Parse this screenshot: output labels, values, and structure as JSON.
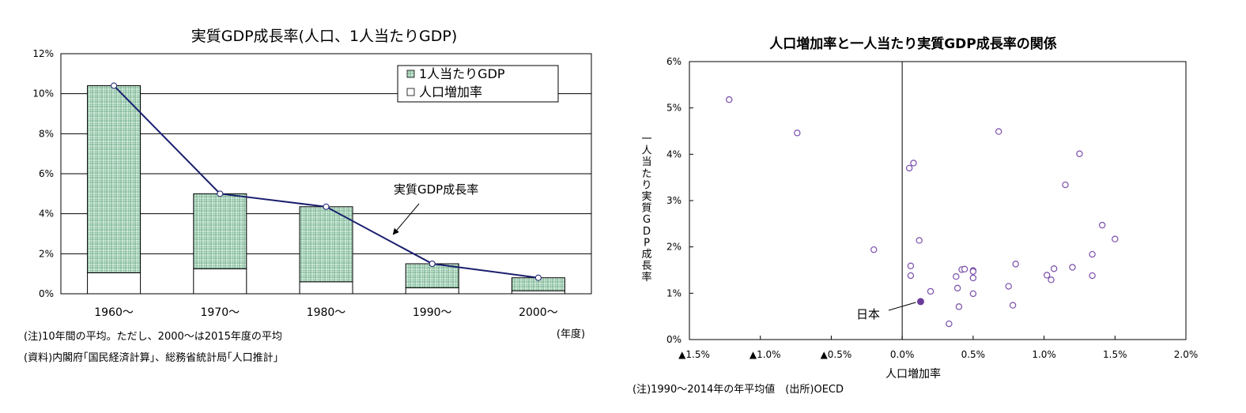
{
  "chart_data": [
    {
      "type": "bar",
      "title": "実質GDP成長率(人口、1人当たりGDP)",
      "categories": [
        "1960～",
        "1970～",
        "1980～",
        "1990～",
        "2000～"
      ],
      "stacked": true,
      "series": [
        {
          "name": "人口増加率",
          "values": [
            1.05,
            1.25,
            0.6,
            0.3,
            0.15
          ]
        },
        {
          "name": "1人当たりGDP",
          "values": [
            9.35,
            3.75,
            3.75,
            1.2,
            0.65
          ]
        }
      ],
      "line_series": {
        "name": "実質GDP成長率",
        "values": [
          10.4,
          5.0,
          4.35,
          1.5,
          0.8
        ]
      },
      "annotation": "実質GDP成長率",
      "ylim": [
        0,
        12
      ],
      "yticks": [
        "0%",
        "2%",
        "4%",
        "6%",
        "8%",
        "10%",
        "12%"
      ],
      "xunit": "(年度)",
      "grid": true,
      "legend_position": "top-right",
      "notes": [
        "(注)10年間の平均。ただし、2000～は2015年度の平均",
        "(資料)内閣府｢国民経済計算｣、総務省統計局｢人口推計｣"
      ]
    },
    {
      "type": "scatter",
      "title": "人口増加率と一人当たり実質GDP成長率の関係",
      "xlabel": "人口増加率",
      "ylabel": "一人当たり実質GDP成長率",
      "xlim": [
        -1.5,
        2.0
      ],
      "ylim": [
        0,
        6
      ],
      "xticks": [
        "▲1.5%",
        "▲1.0%",
        "▲0.5%",
        "0.0%",
        "0.5%",
        "1.0%",
        "1.5%",
        "2.0%"
      ],
      "yticks": [
        "0%",
        "1%",
        "2%",
        "3%",
        "4%",
        "5%",
        "6%"
      ],
      "points": [
        {
          "x": -1.22,
          "y": 5.18
        },
        {
          "x": -0.74,
          "y": 4.46
        },
        {
          "x": -0.2,
          "y": 1.94
        },
        {
          "x": 0.05,
          "y": 3.7
        },
        {
          "x": 0.08,
          "y": 3.81
        },
        {
          "x": 0.12,
          "y": 2.14
        },
        {
          "x": 0.06,
          "y": 1.59
        },
        {
          "x": 0.06,
          "y": 1.38
        },
        {
          "x": 0.2,
          "y": 1.04
        },
        {
          "x": 0.33,
          "y": 0.34
        },
        {
          "x": 0.38,
          "y": 1.36
        },
        {
          "x": 0.39,
          "y": 1.11
        },
        {
          "x": 0.4,
          "y": 0.71
        },
        {
          "x": 0.42,
          "y": 1.51
        },
        {
          "x": 0.44,
          "y": 1.52
        },
        {
          "x": 0.5,
          "y": 1.49
        },
        {
          "x": 0.5,
          "y": 1.47
        },
        {
          "x": 0.5,
          "y": 1.33
        },
        {
          "x": 0.5,
          "y": 0.99
        },
        {
          "x": 0.68,
          "y": 4.49
        },
        {
          "x": 0.75,
          "y": 1.15
        },
        {
          "x": 0.78,
          "y": 0.74
        },
        {
          "x": 0.8,
          "y": 1.63
        },
        {
          "x": 1.02,
          "y": 1.39
        },
        {
          "x": 1.05,
          "y": 1.29
        },
        {
          "x": 1.07,
          "y": 1.53
        },
        {
          "x": 1.15,
          "y": 3.34
        },
        {
          "x": 1.2,
          "y": 1.56
        },
        {
          "x": 1.25,
          "y": 4.01
        },
        {
          "x": 1.34,
          "y": 1.84
        },
        {
          "x": 1.34,
          "y": 1.38
        },
        {
          "x": 1.41,
          "y": 2.47
        },
        {
          "x": 1.5,
          "y": 2.17
        }
      ],
      "highlight": {
        "label": "日本",
        "x": 0.13,
        "y": 0.82
      },
      "notes": "(注)1990～2014年の年平均値　(出所)OECD"
    }
  ],
  "colors": {
    "bar_fill": "#d2ecdc",
    "bar_hatch": "#2e7a4f",
    "line": "#1a1f6e",
    "point": "#7a4eab",
    "highlight": "#6a3c9a"
  }
}
